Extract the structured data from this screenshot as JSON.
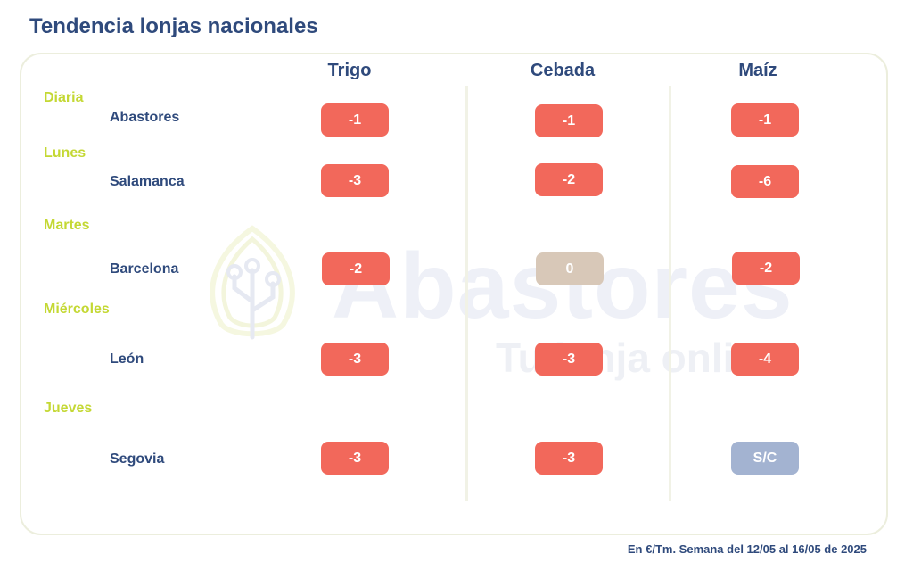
{
  "title": "Tendencia lonjas nacionales",
  "watermark": {
    "brand": "Abastores",
    "tagline": "Tu lonja online"
  },
  "columns": [
    "Trigo",
    "Cebada",
    "Maíz"
  ],
  "days": {
    "diaria": "Diaria",
    "lunes": "Lunes",
    "martes": "Martes",
    "miercoles": "Miércoles",
    "jueves": "Jueves"
  },
  "markets": {
    "abastores": {
      "label": "Abastores",
      "trigo": "-1",
      "cebada": "-1",
      "maiz": "-1"
    },
    "salamanca": {
      "label": "Salamanca",
      "trigo": "-3",
      "cebada": "-2",
      "maiz": "-6"
    },
    "barcelona": {
      "label": "Barcelona",
      "trigo": "-2",
      "cebada": "0",
      "maiz": "-2"
    },
    "leon": {
      "label": "León",
      "trigo": "-3",
      "cebada": "-3",
      "maiz": "-4"
    },
    "segovia": {
      "label": "Segovia",
      "trigo": "-3",
      "cebada": "-3",
      "maiz": "S/C"
    }
  },
  "colors": {
    "negative": "#f2685b",
    "neutral": "#d8c8b8",
    "no_quote": "#a3b3d1",
    "title": "#2f4a7c",
    "day_label": "#c4d834"
  },
  "footnote": "En €/Tm. Semana del 12/05 al 16/05 de 2025"
}
